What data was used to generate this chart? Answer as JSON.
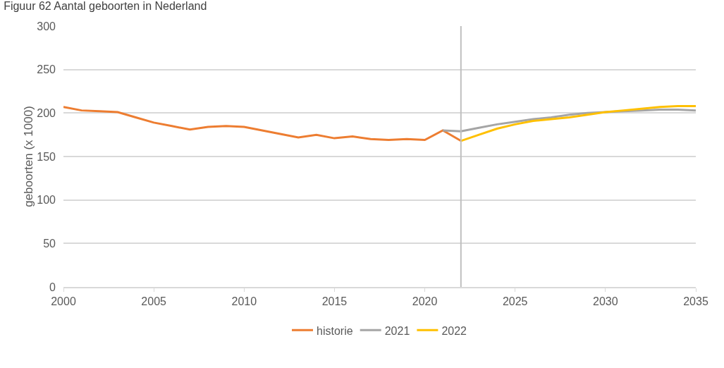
{
  "chart_data": {
    "type": "line",
    "title": "Figuur 62 Aantal geboorten in Nederland",
    "ylabel": "geboorten (x 1000)",
    "xlim": [
      2000,
      2035
    ],
    "xticks": [
      2000,
      2005,
      2010,
      2015,
      2020,
      2025,
      2030,
      2035
    ],
    "ylim": [
      0,
      300
    ],
    "yticks": [
      0,
      50,
      100,
      150,
      200,
      250,
      300
    ],
    "grid": "y",
    "legend": "bottom",
    "marker": "none",
    "line_style": "solid",
    "ref_lines": [
      {
        "axis": "x",
        "value": 2022,
        "color": "#bfbfbf"
      }
    ],
    "series": [
      {
        "name": "historie",
        "color": "#ed7d31",
        "x": [
          2000,
          2001,
          2002,
          2003,
          2004,
          2005,
          2006,
          2007,
          2008,
          2009,
          2010,
          2011,
          2012,
          2013,
          2014,
          2015,
          2016,
          2017,
          2018,
          2019,
          2020,
          2021,
          2022
        ],
        "values": [
          207,
          203,
          202,
          201,
          195,
          189,
          185,
          181,
          184,
          185,
          184,
          180,
          176,
          172,
          175,
          171,
          173,
          170,
          169,
          170,
          169,
          180,
          168
        ]
      },
      {
        "name": "2021",
        "color": "#a5a5a5",
        "x": [
          2021,
          2022,
          2023,
          2024,
          2025,
          2026,
          2027,
          2028,
          2029,
          2030,
          2031,
          2032,
          2033,
          2034,
          2035
        ],
        "values": [
          180,
          179,
          183,
          187,
          190,
          193,
          195,
          198,
          200,
          201,
          202,
          203,
          204,
          204,
          203
        ]
      },
      {
        "name": "2022",
        "color": "#ffc000",
        "x": [
          2022,
          2023,
          2024,
          2025,
          2026,
          2027,
          2028,
          2029,
          2030,
          2031,
          2032,
          2033,
          2034,
          2035
        ],
        "values": [
          168,
          175,
          182,
          187,
          191,
          193,
          195,
          198,
          201,
          203,
          205,
          207,
          208,
          208
        ]
      }
    ]
  }
}
